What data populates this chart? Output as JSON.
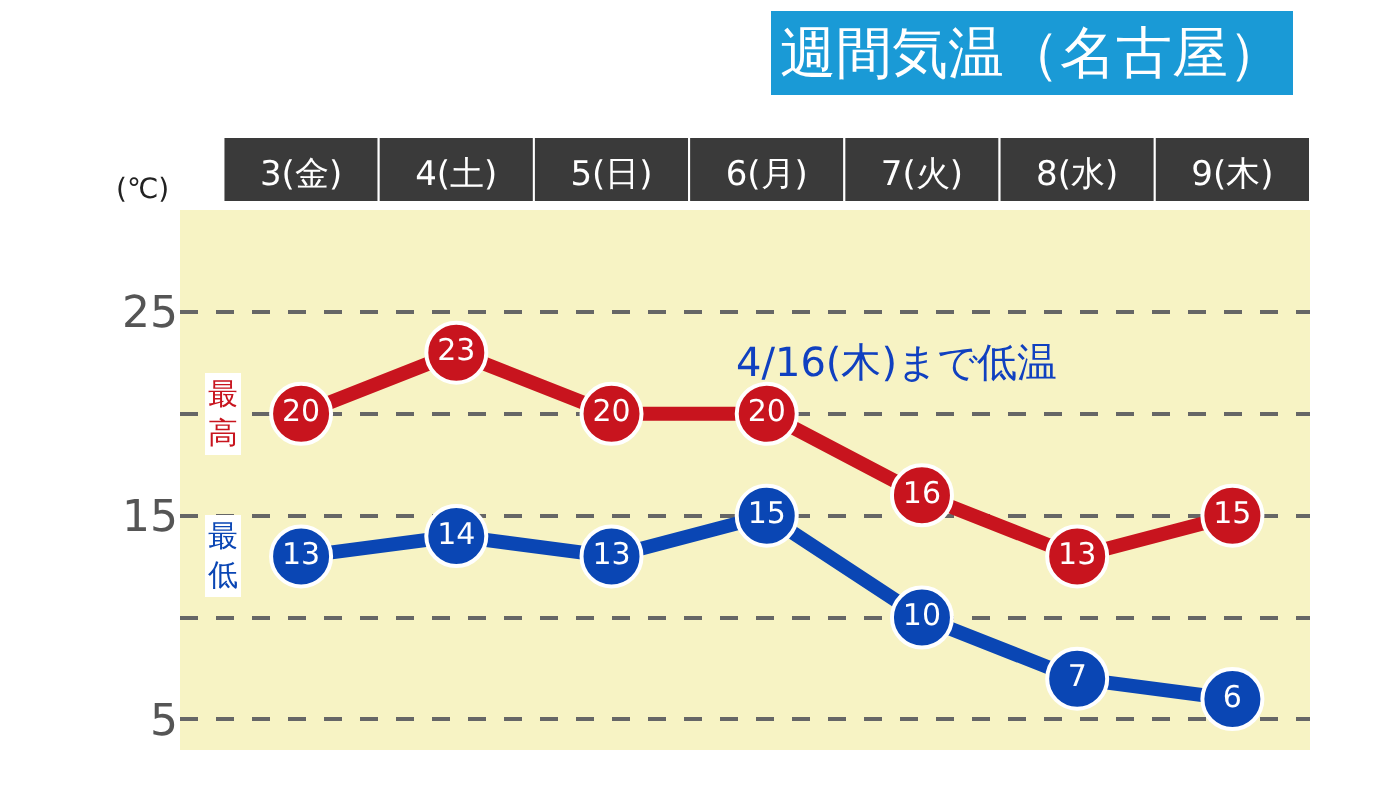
{
  "chart_data": {
    "type": "line",
    "title": "週間気温（名古屋）",
    "ylabel": "(℃)",
    "categories": [
      "3(金)",
      "4(土)",
      "5(日)",
      "6(月)",
      "7(火)",
      "8(水)",
      "9(木)"
    ],
    "series": [
      {
        "name": "最高",
        "color": "#c8141e",
        "values": [
          20,
          23,
          20,
          20,
          16,
          13,
          15
        ]
      },
      {
        "name": "最低",
        "color": "#0a46b4",
        "values": [
          13,
          14,
          13,
          15,
          10,
          7,
          6
        ]
      }
    ],
    "ylim": [
      3.5,
      30
    ],
    "yticks": [
      5,
      {
        "value": 10,
        "label": null
      },
      15,
      {
        "value": 20,
        "label": null
      },
      25
    ],
    "grid": "y",
    "marker": "circle",
    "line_style": "solid",
    "data_labels": true,
    "legend": false,
    "annotations": [
      "4/16(木)まで低温"
    ]
  }
}
